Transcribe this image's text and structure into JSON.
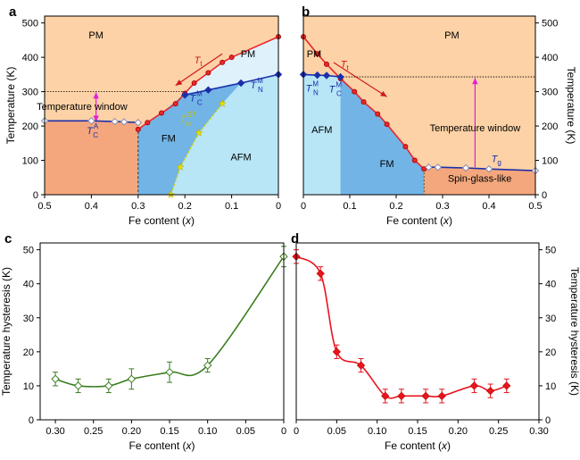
{
  "chart_data": [
    {
      "panel": "a",
      "type": "line",
      "xlabel": "Fe content (",
      "xlabel_var": "x",
      "ylabel": "Temperature (K)",
      "xlim": [
        0.5,
        0
      ],
      "ylim": [
        0,
        520
      ],
      "xticks": [
        "0.5",
        "0.4",
        "0.3",
        "0.2",
        "0.1",
        "0"
      ],
      "yticks": [
        "0",
        "100",
        "200",
        "300",
        "400",
        "500"
      ],
      "series": [
        {
          "key": "Tt",
          "color": "#e8282c",
          "x": [
            0.3,
            0.28,
            0.25,
            0.22,
            0.2,
            0.18,
            0.15,
            0.12,
            0.1,
            0.0
          ],
          "y": [
            190,
            210,
            238,
            265,
            295,
            325,
            355,
            385,
            400,
            460
          ]
        },
        {
          "key": "TCM",
          "color": "#1c2faa",
          "x": [
            0.2,
            0.15,
            0.08,
            0.0
          ],
          "y": [
            290,
            305,
            325,
            350
          ]
        },
        {
          "key": "TCA",
          "color": "#1c2faa",
          "x": [
            0.5,
            0.4,
            0.35,
            0.33,
            0.3
          ],
          "y": [
            215,
            215,
            213,
            212,
            210
          ]
        },
        {
          "key": "TcrST",
          "color": "#c9d000",
          "x": [
            0.23,
            0.21,
            0.17,
            0.12
          ],
          "y": [
            0,
            80,
            180,
            265
          ]
        }
      ],
      "regions": {
        "pm_top": "PM",
        "pm_mid": "PM",
        "fm": "FM",
        "afm": "AFM"
      },
      "annotations": {
        "temperature_window": "Temperature window"
      },
      "labels": {
        "Tt": {
          "main": "T",
          "sub": "t"
        },
        "TCM": {
          "main": "T",
          "sub": "C",
          "sup": "M"
        },
        "TNM": {
          "main": "T",
          "sub": "N",
          "sup": "M"
        },
        "TCA": {
          "main": "T",
          "sub": "C",
          "sup": "A"
        },
        "TcrST": {
          "main": "T",
          "sub": "cr",
          "sup": "ST"
        }
      }
    },
    {
      "panel": "b",
      "type": "line",
      "xlabel": "Fe content (",
      "xlabel_var": "x",
      "ylabel": "Temperature (K)",
      "xlim": [
        0,
        0.5
      ],
      "ylim": [
        0,
        520
      ],
      "xticks": [
        "0",
        "0.1",
        "0.2",
        "0.3",
        "0.4",
        "0.5"
      ],
      "yticks": [
        "0",
        "100",
        "200",
        "300",
        "400",
        "500"
      ],
      "series": [
        {
          "key": "Tt",
          "color": "#e8282c",
          "x": [
            0.0,
            0.03,
            0.05,
            0.08,
            0.11,
            0.13,
            0.16,
            0.18,
            0.22,
            0.24,
            0.26
          ],
          "y": [
            460,
            410,
            380,
            338,
            300,
            270,
            235,
            205,
            140,
            100,
            75
          ]
        },
        {
          "key": "TNM",
          "color": "#1c2faa",
          "x": [
            0.0,
            0.03,
            0.05,
            0.08
          ],
          "y": [
            350,
            348,
            347,
            343
          ]
        },
        {
          "key": "Tg",
          "color": "#1c2faa",
          "x": [
            0.27,
            0.29,
            0.35,
            0.4,
            0.5
          ],
          "y": [
            80,
            80,
            78,
            75,
            70
          ]
        }
      ],
      "regions": {
        "pm_top": "PM",
        "pm_left": "PM",
        "afm": "AFM",
        "fm": "FM",
        "spin_glass": "Spin-glass-like"
      },
      "annotations": {
        "temperature_window": "Temperature window"
      },
      "labels": {
        "Tt": {
          "main": "T",
          "sub": "t"
        },
        "TNM": {
          "main": "T",
          "sub": "N",
          "sup": "M"
        },
        "TCM": {
          "main": "T",
          "sub": "C",
          "sup": "M"
        },
        "Tg": {
          "main": "T",
          "sub": "g"
        }
      }
    },
    {
      "panel": "c",
      "type": "scatter",
      "xlabel": "Fe content (",
      "xlabel_var": "x",
      "ylabel": "Temperature hysteresis (K)",
      "xlim": [
        0.32,
        0
      ],
      "ylim": [
        0,
        52
      ],
      "xticks": [
        "0.30",
        "0.25",
        "0.20",
        "0.15",
        "0.10",
        "0.05",
        "0"
      ],
      "yticks": [
        "0",
        "10",
        "20",
        "30",
        "40",
        "50"
      ],
      "series": [
        {
          "name": "",
          "color": "#3a7d1e",
          "x": [
            0.3,
            0.27,
            0.23,
            0.2,
            0.15,
            0.1,
            0.0
          ],
          "y": [
            12,
            10,
            10,
            12,
            14,
            16,
            48
          ],
          "err": [
            2,
            2,
            2,
            3,
            3,
            2,
            3
          ]
        }
      ]
    },
    {
      "panel": "d",
      "type": "scatter",
      "xlabel": "Fe content (",
      "xlabel_var": "x",
      "ylabel": "Temperature hysteresis (K)",
      "xlim": [
        0,
        0.3
      ],
      "ylim": [
        0,
        52
      ],
      "xticks": [
        "0",
        "0.05",
        "0.10",
        "0.15",
        "0.20",
        "0.25",
        "0.30"
      ],
      "yticks": [
        "0",
        "10",
        "20",
        "30",
        "40",
        "50"
      ],
      "series": [
        {
          "name": "",
          "color": "#e8141e",
          "x": [
            0.0,
            0.03,
            0.05,
            0.08,
            0.11,
            0.13,
            0.16,
            0.18,
            0.22,
            0.24,
            0.26
          ],
          "y": [
            48,
            43,
            20,
            16,
            7,
            7,
            7,
            7,
            10,
            8.5,
            10
          ],
          "err": [
            2,
            2,
            2,
            2,
            2,
            2,
            2,
            2,
            2,
            2,
            2
          ]
        }
      ]
    }
  ]
}
